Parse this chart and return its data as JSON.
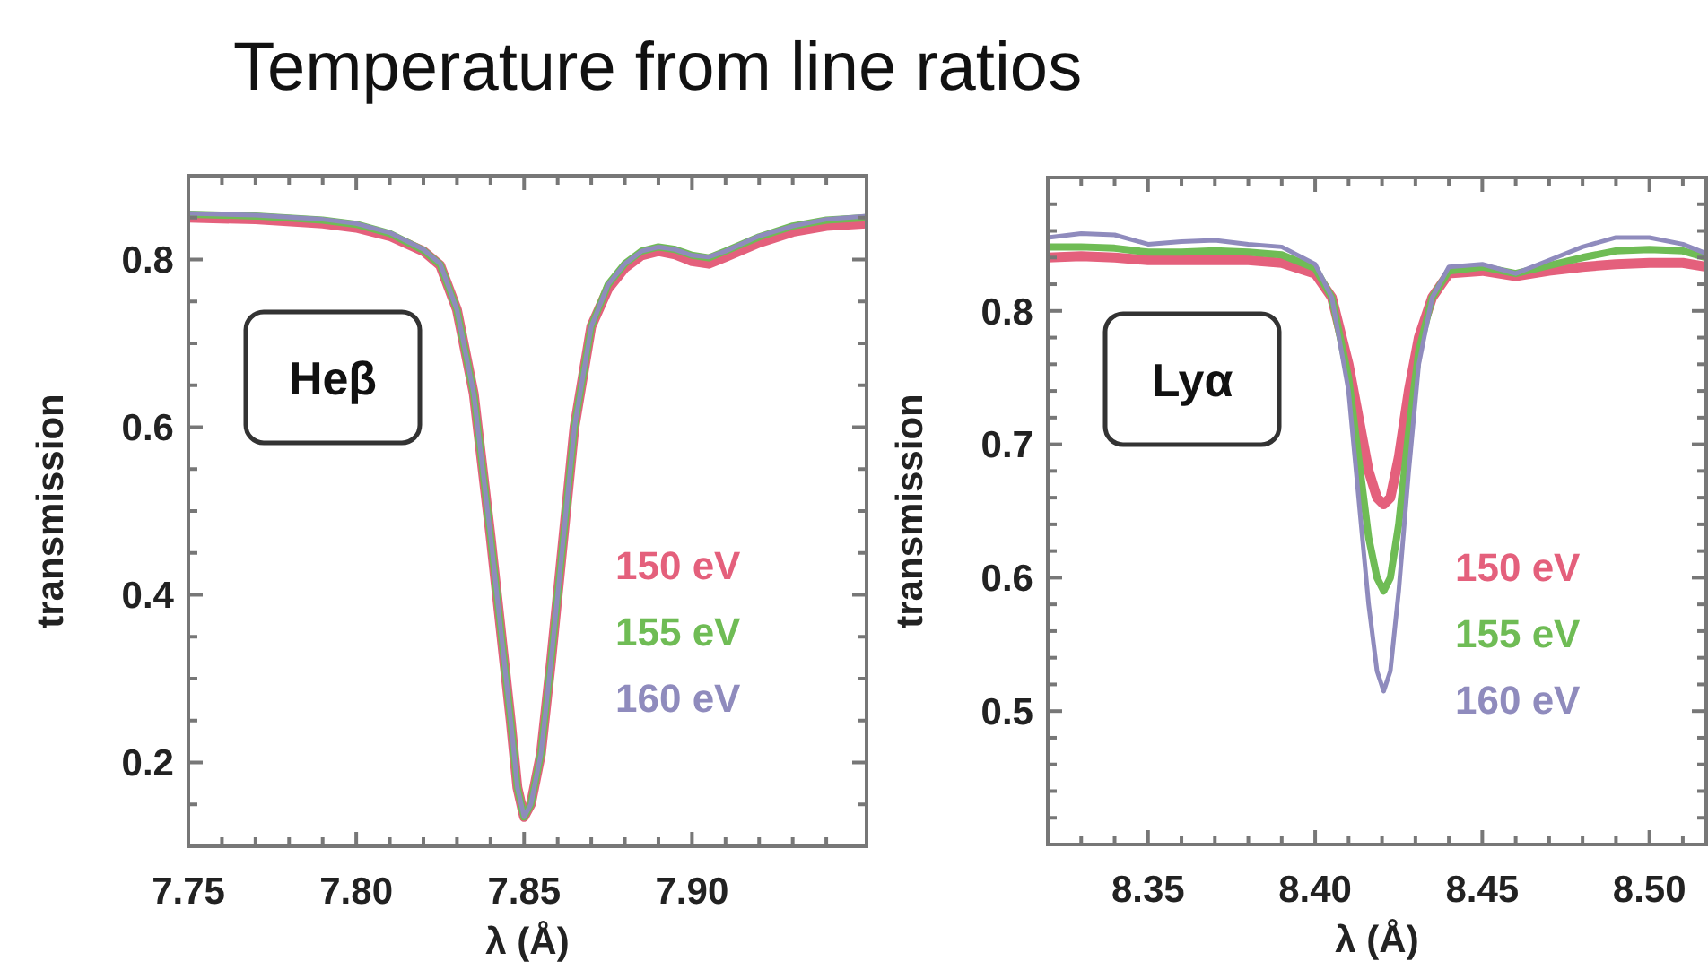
{
  "chart_data": [
    {
      "type": "line",
      "title": "Temperature from line ratios",
      "xlabel": "λ (Å)",
      "ylabel": "transmission",
      "annotations": [
        "Heβ"
      ],
      "legend": "right",
      "grid": false,
      "xlim": [
        7.75,
        7.952
      ],
      "ylim": [
        0.1,
        0.9
      ],
      "xticks": [
        {
          "value": 7.75,
          "label": "7.75"
        },
        {
          "value": 7.76,
          "label": null
        },
        {
          "value": 7.77,
          "label": null
        },
        {
          "value": 7.78,
          "label": null
        },
        {
          "value": 7.79,
          "label": null
        },
        {
          "value": 7.8,
          "label": "7.80"
        },
        {
          "value": 7.81,
          "label": null
        },
        {
          "value": 7.82,
          "label": null
        },
        {
          "value": 7.83,
          "label": null
        },
        {
          "value": 7.84,
          "label": null
        },
        {
          "value": 7.85,
          "label": "7.85"
        },
        {
          "value": 7.86,
          "label": null
        },
        {
          "value": 7.87,
          "label": null
        },
        {
          "value": 7.88,
          "label": null
        },
        {
          "value": 7.89,
          "label": null
        },
        {
          "value": 7.9,
          "label": "7.90"
        },
        {
          "value": 7.91,
          "label": null
        },
        {
          "value": 7.92,
          "label": null
        },
        {
          "value": 7.93,
          "label": null
        },
        {
          "value": 7.94,
          "label": null
        }
      ],
      "yticks": [
        {
          "value": 0.15,
          "label": null
        },
        {
          "value": 0.2,
          "label": "0.2"
        },
        {
          "value": 0.25,
          "label": null
        },
        {
          "value": 0.3,
          "label": null
        },
        {
          "value": 0.35,
          "label": null
        },
        {
          "value": 0.4,
          "label": "0.4"
        },
        {
          "value": 0.45,
          "label": null
        },
        {
          "value": 0.5,
          "label": null
        },
        {
          "value": 0.55,
          "label": null
        },
        {
          "value": 0.6,
          "label": "0.6"
        },
        {
          "value": 0.65,
          "label": null
        },
        {
          "value": 0.7,
          "label": null
        },
        {
          "value": 0.75,
          "label": null
        },
        {
          "value": 0.8,
          "label": "0.8"
        },
        {
          "value": 0.85,
          "label": null
        }
      ],
      "x": [
        7.75,
        7.77,
        7.79,
        7.8,
        7.81,
        7.82,
        7.825,
        7.83,
        7.835,
        7.84,
        7.843,
        7.846,
        7.848,
        7.85,
        7.852,
        7.855,
        7.858,
        7.861,
        7.865,
        7.87,
        7.875,
        7.88,
        7.885,
        7.89,
        7.895,
        7.9,
        7.905,
        7.91,
        7.92,
        7.93,
        7.94,
        7.952
      ],
      "series": [
        {
          "name": "150 eV",
          "color": "#e4607c",
          "values": [
            0.85,
            0.848,
            0.843,
            0.838,
            0.828,
            0.81,
            0.793,
            0.74,
            0.64,
            0.47,
            0.36,
            0.25,
            0.17,
            0.135,
            0.15,
            0.21,
            0.32,
            0.44,
            0.6,
            0.72,
            0.765,
            0.79,
            0.805,
            0.81,
            0.806,
            0.798,
            0.795,
            0.803,
            0.82,
            0.833,
            0.84,
            0.843
          ]
        },
        {
          "name": "155 eV",
          "color": "#6fbc55",
          "values": [
            0.854,
            0.852,
            0.847,
            0.842,
            0.831,
            0.811,
            0.794,
            0.74,
            0.64,
            0.47,
            0.36,
            0.25,
            0.17,
            0.135,
            0.15,
            0.21,
            0.32,
            0.44,
            0.6,
            0.72,
            0.77,
            0.795,
            0.81,
            0.815,
            0.812,
            0.805,
            0.802,
            0.81,
            0.827,
            0.84,
            0.847,
            0.85
          ]
        },
        {
          "name": "160 eV",
          "color": "#8f8bbd",
          "values": [
            0.855,
            0.853,
            0.848,
            0.843,
            0.832,
            0.812,
            0.795,
            0.74,
            0.64,
            0.47,
            0.36,
            0.25,
            0.17,
            0.135,
            0.15,
            0.21,
            0.32,
            0.44,
            0.6,
            0.72,
            0.77,
            0.795,
            0.81,
            0.815,
            0.812,
            0.805,
            0.803,
            0.81,
            0.828,
            0.84,
            0.848,
            0.852
          ]
        }
      ]
    },
    {
      "type": "line",
      "xlabel": "λ (Å)",
      "ylabel": "transmission",
      "annotations": [
        "Lyα"
      ],
      "legend": "right",
      "grid": false,
      "xlim": [
        8.32,
        8.517
      ],
      "ylim": [
        0.4,
        0.9
      ],
      "xticks": [
        {
          "value": 8.33,
          "label": null
        },
        {
          "value": 8.34,
          "label": null
        },
        {
          "value": 8.35,
          "label": "8.35"
        },
        {
          "value": 8.36,
          "label": null
        },
        {
          "value": 8.37,
          "label": null
        },
        {
          "value": 8.38,
          "label": null
        },
        {
          "value": 8.39,
          "label": null
        },
        {
          "value": 8.4,
          "label": "8.40"
        },
        {
          "value": 8.41,
          "label": null
        },
        {
          "value": 8.42,
          "label": null
        },
        {
          "value": 8.43,
          "label": null
        },
        {
          "value": 8.44,
          "label": null
        },
        {
          "value": 8.45,
          "label": "8.45"
        },
        {
          "value": 8.46,
          "label": null
        },
        {
          "value": 8.47,
          "label": null
        },
        {
          "value": 8.48,
          "label": null
        },
        {
          "value": 8.49,
          "label": null
        },
        {
          "value": 8.5,
          "label": "8.50"
        },
        {
          "value": 8.51,
          "label": null
        }
      ],
      "yticks": [
        {
          "value": 0.42,
          "label": null
        },
        {
          "value": 0.44,
          "label": null
        },
        {
          "value": 0.46,
          "label": null
        },
        {
          "value": 0.48,
          "label": null
        },
        {
          "value": 0.5,
          "label": "0.5"
        },
        {
          "value": 0.52,
          "label": null
        },
        {
          "value": 0.54,
          "label": null
        },
        {
          "value": 0.56,
          "label": null
        },
        {
          "value": 0.58,
          "label": null
        },
        {
          "value": 0.6,
          "label": "0.6"
        },
        {
          "value": 0.62,
          "label": null
        },
        {
          "value": 0.64,
          "label": null
        },
        {
          "value": 0.66,
          "label": null
        },
        {
          "value": 0.68,
          "label": null
        },
        {
          "value": 0.7,
          "label": "0.7"
        },
        {
          "value": 0.72,
          "label": null
        },
        {
          "value": 0.74,
          "label": null
        },
        {
          "value": 0.76,
          "label": null
        },
        {
          "value": 0.78,
          "label": null
        },
        {
          "value": 0.8,
          "label": "0.8"
        },
        {
          "value": 0.82,
          "label": null
        },
        {
          "value": 0.84,
          "label": null
        },
        {
          "value": 0.86,
          "label": null
        },
        {
          "value": 0.88,
          "label": null
        }
      ],
      "x": [
        8.32,
        8.33,
        8.34,
        8.35,
        8.36,
        8.37,
        8.38,
        8.39,
        8.4,
        8.405,
        8.41,
        8.413,
        8.416,
        8.4185,
        8.4205,
        8.4225,
        8.425,
        8.428,
        8.431,
        8.435,
        8.44,
        8.45,
        8.46,
        8.47,
        8.48,
        8.49,
        8.5,
        8.51,
        8.517
      ],
      "series": [
        {
          "name": "150 eV",
          "color": "#e4607c",
          "values": [
            0.84,
            0.841,
            0.84,
            0.838,
            0.838,
            0.838,
            0.838,
            0.836,
            0.828,
            0.81,
            0.76,
            0.72,
            0.68,
            0.66,
            0.655,
            0.66,
            0.69,
            0.74,
            0.78,
            0.81,
            0.828,
            0.83,
            0.826,
            0.83,
            0.833,
            0.835,
            0.836,
            0.836,
            0.833
          ]
        },
        {
          "name": "155 eV",
          "color": "#6fbc55",
          "values": [
            0.848,
            0.848,
            0.847,
            0.844,
            0.844,
            0.845,
            0.844,
            0.842,
            0.832,
            0.81,
            0.75,
            0.69,
            0.63,
            0.6,
            0.59,
            0.6,
            0.64,
            0.71,
            0.77,
            0.81,
            0.83,
            0.833,
            0.828,
            0.834,
            0.84,
            0.845,
            0.846,
            0.845,
            0.84
          ]
        },
        {
          "name": "160 eV",
          "color": "#8f8bbd",
          "values": [
            0.855,
            0.858,
            0.857,
            0.85,
            0.852,
            0.853,
            0.85,
            0.848,
            0.835,
            0.81,
            0.74,
            0.66,
            0.58,
            0.53,
            0.515,
            0.53,
            0.59,
            0.68,
            0.76,
            0.81,
            0.833,
            0.835,
            0.828,
            0.838,
            0.848,
            0.855,
            0.855,
            0.85,
            0.843
          ]
        }
      ]
    }
  ]
}
